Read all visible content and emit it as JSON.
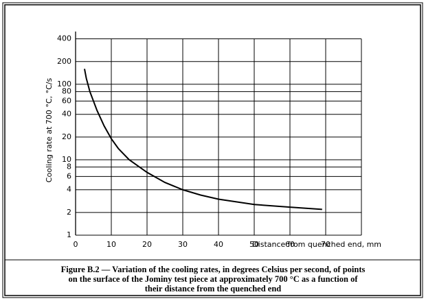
{
  "chart_data": {
    "type": "line",
    "y_label": "Cooling rate at 700 °C, °C/s",
    "x_label": "Distance from quenched end, mm",
    "x": [
      2.5,
      3,
      4,
      6,
      8,
      10,
      12,
      15,
      20,
      25,
      30,
      35,
      40,
      50,
      60,
      69
    ],
    "values": [
      160,
      120,
      80,
      45,
      28,
      19,
      14,
      10,
      6.8,
      5.0,
      4.0,
      3.4,
      3.0,
      2.55,
      2.35,
      2.2
    ],
    "color": "#000000",
    "log_y": true,
    "grid": true,
    "xlim": [
      0,
      80
    ],
    "xticks": [
      0,
      10,
      20,
      30,
      40,
      50,
      60,
      70
    ],
    "ylim": [
      1,
      500
    ],
    "yticks": [
      1,
      2,
      4,
      6,
      8,
      10,
      20,
      40,
      60,
      80,
      100,
      200,
      400
    ]
  },
  "caption": [
    "Figure B.2 — Variation of the cooling rates, in degrees Celsius per second, of points",
    "on the surface of the Jominy test piece at approximately 700 °C as a function of",
    "their distance from the quenched end"
  ]
}
